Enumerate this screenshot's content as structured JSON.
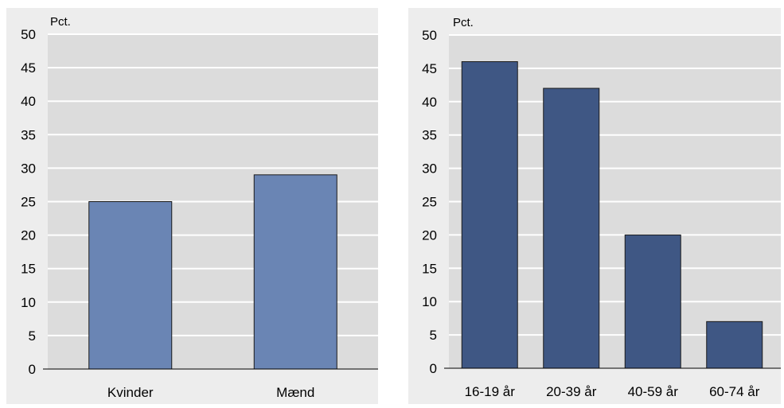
{
  "chart_data": [
    {
      "type": "bar",
      "ylabel": "Pct.",
      "categories": [
        "Kvinder",
        "Mænd"
      ],
      "values": [
        25,
        29
      ],
      "ylim": [
        0,
        50
      ],
      "yticks": [
        "0",
        "5",
        "10",
        "15",
        "20",
        "25",
        "30",
        "35",
        "40",
        "45",
        "50"
      ],
      "grid": true,
      "bar_color": "#6a85b4",
      "plot_background": "#dcdcdc",
      "panel_background": "#ededed"
    },
    {
      "type": "bar",
      "ylabel": "Pct.",
      "categories": [
        "16-19 år",
        "20-39 år",
        "40-59 år",
        "60-74 år"
      ],
      "values": [
        46,
        42,
        20,
        7
      ],
      "ylim": [
        0,
        50
      ],
      "yticks": [
        "0",
        "5",
        "10",
        "15",
        "20",
        "25",
        "30",
        "35",
        "40",
        "45",
        "50"
      ],
      "grid": true,
      "bar_color": "#3f5784",
      "plot_background": "#dcdcdc",
      "panel_background": "#ededed"
    }
  ]
}
